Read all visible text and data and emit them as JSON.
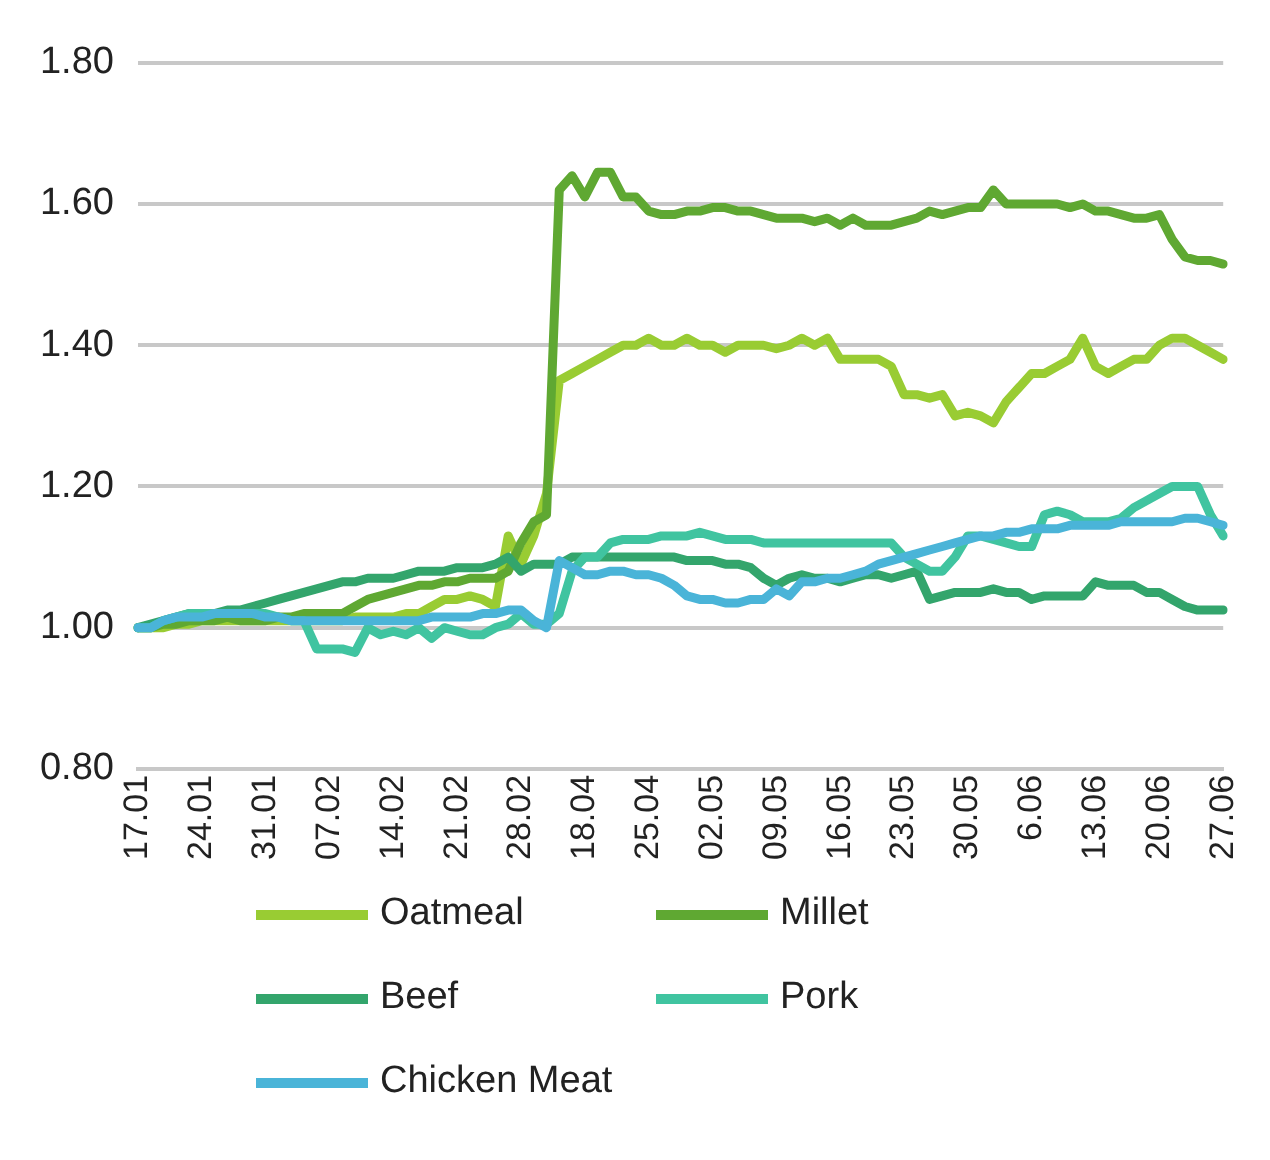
{
  "chart_data": {
    "type": "line",
    "categories": [
      "17.01",
      null,
      null,
      null,
      null,
      "24.01",
      null,
      null,
      null,
      null,
      "31.01",
      null,
      null,
      null,
      null,
      "07.02",
      null,
      null,
      null,
      null,
      "14.02",
      null,
      null,
      null,
      null,
      "21.02",
      null,
      null,
      null,
      null,
      "28.02",
      null,
      null,
      null,
      null,
      "18.04",
      null,
      null,
      null,
      null,
      "25.04",
      null,
      null,
      null,
      null,
      "02.05",
      null,
      null,
      null,
      null,
      "09.05",
      null,
      null,
      null,
      null,
      "16.05",
      null,
      null,
      null,
      null,
      "23.05",
      null,
      null,
      null,
      null,
      "30.05",
      null,
      null,
      null,
      null,
      "6.06",
      null,
      null,
      null,
      null,
      "13.06",
      null,
      null,
      null,
      null,
      "20.06",
      null,
      null,
      null,
      null,
      "27.06"
    ],
    "series": [
      {
        "name": "Oatmeal",
        "color": "#99cc33",
        "values": [
          1.0,
          1.0,
          1.0,
          1.005,
          1.005,
          1.01,
          1.01,
          1.01,
          1.01,
          1.01,
          1.01,
          1.01,
          1.01,
          1.01,
          1.01,
          1.01,
          1.01,
          1.015,
          1.015,
          1.015,
          1.015,
          1.02,
          1.02,
          1.03,
          1.04,
          1.04,
          1.045,
          1.04,
          1.03,
          1.13,
          1.09,
          1.13,
          1.19,
          1.35,
          1.36,
          1.37,
          1.38,
          1.39,
          1.4,
          1.4,
          1.41,
          1.4,
          1.4,
          1.41,
          1.4,
          1.4,
          1.39,
          1.4,
          1.4,
          1.4,
          1.395,
          1.4,
          1.41,
          1.4,
          1.41,
          1.38,
          1.38,
          1.38,
          1.38,
          1.37,
          1.33,
          1.33,
          1.325,
          1.33,
          1.3,
          1.305,
          1.3,
          1.29,
          1.32,
          1.34,
          1.36,
          1.36,
          1.37,
          1.38,
          1.41,
          1.37,
          1.36,
          1.37,
          1.38,
          1.38,
          1.4,
          1.41,
          1.41,
          1.4,
          1.39,
          1.38
        ]
      },
      {
        "name": "Millet",
        "color": "#5fa832",
        "values": [
          1.0,
          1.0,
          1.005,
          1.005,
          1.01,
          1.01,
          1.01,
          1.015,
          1.01,
          1.01,
          1.01,
          1.015,
          1.015,
          1.02,
          1.02,
          1.02,
          1.02,
          1.03,
          1.04,
          1.045,
          1.05,
          1.055,
          1.06,
          1.06,
          1.065,
          1.065,
          1.07,
          1.07,
          1.07,
          1.08,
          1.12,
          1.15,
          1.16,
          1.62,
          1.64,
          1.61,
          1.645,
          1.645,
          1.61,
          1.61,
          1.59,
          1.585,
          1.585,
          1.59,
          1.59,
          1.595,
          1.595,
          1.59,
          1.59,
          1.585,
          1.58,
          1.58,
          1.58,
          1.575,
          1.58,
          1.57,
          1.58,
          1.57,
          1.57,
          1.57,
          1.575,
          1.58,
          1.59,
          1.585,
          1.59,
          1.595,
          1.595,
          1.62,
          1.6,
          1.6,
          1.6,
          1.6,
          1.6,
          1.595,
          1.6,
          1.59,
          1.59,
          1.585,
          1.58,
          1.58,
          1.585,
          1.55,
          1.525,
          1.52,
          1.52,
          1.515
        ]
      },
      {
        "name": "Beef",
        "color": "#33a56c",
        "values": [
          1.0,
          1.005,
          1.01,
          1.015,
          1.02,
          1.02,
          1.02,
          1.025,
          1.025,
          1.03,
          1.035,
          1.04,
          1.045,
          1.05,
          1.055,
          1.06,
          1.065,
          1.065,
          1.07,
          1.07,
          1.07,
          1.075,
          1.08,
          1.08,
          1.08,
          1.085,
          1.085,
          1.085,
          1.09,
          1.1,
          1.08,
          1.09,
          1.09,
          1.09,
          1.1,
          1.1,
          1.1,
          1.1,
          1.1,
          1.1,
          1.1,
          1.1,
          1.1,
          1.095,
          1.095,
          1.095,
          1.09,
          1.09,
          1.085,
          1.07,
          1.06,
          1.07,
          1.075,
          1.07,
          1.07,
          1.065,
          1.07,
          1.075,
          1.075,
          1.07,
          1.075,
          1.08,
          1.04,
          1.045,
          1.05,
          1.05,
          1.05,
          1.055,
          1.05,
          1.05,
          1.04,
          1.045,
          1.045,
          1.045,
          1.045,
          1.065,
          1.06,
          1.06,
          1.06,
          1.05,
          1.05,
          1.04,
          1.03,
          1.025,
          1.025,
          1.025
        ]
      },
      {
        "name": "Pork",
        "color": "#40c4a0",
        "values": [
          1.0,
          1.0,
          1.01,
          1.015,
          1.02,
          1.02,
          1.02,
          1.02,
          1.02,
          1.02,
          1.02,
          1.015,
          1.01,
          1.01,
          0.97,
          0.97,
          0.97,
          0.965,
          1.0,
          0.99,
          0.995,
          0.99,
          1.0,
          0.985,
          1.0,
          0.995,
          0.99,
          0.99,
          1.0,
          1.005,
          1.02,
          1.005,
          1.005,
          1.02,
          1.08,
          1.1,
          1.1,
          1.12,
          1.125,
          1.125,
          1.125,
          1.13,
          1.13,
          1.13,
          1.135,
          1.13,
          1.125,
          1.125,
          1.125,
          1.12,
          1.12,
          1.12,
          1.12,
          1.12,
          1.12,
          1.12,
          1.12,
          1.12,
          1.12,
          1.12,
          1.1,
          1.09,
          1.08,
          1.08,
          1.1,
          1.13,
          1.13,
          1.125,
          1.12,
          1.115,
          1.115,
          1.16,
          1.165,
          1.16,
          1.15,
          1.15,
          1.15,
          1.155,
          1.17,
          1.18,
          1.19,
          1.2,
          1.2,
          1.2,
          1.16,
          1.13
        ]
      },
      {
        "name": "Chicken Meat",
        "color": "#4ab4d8",
        "values": [
          1.0,
          1.0,
          1.01,
          1.015,
          1.015,
          1.015,
          1.02,
          1.02,
          1.02,
          1.02,
          1.015,
          1.015,
          1.01,
          1.01,
          1.01,
          1.01,
          1.01,
          1.01,
          1.01,
          1.01,
          1.01,
          1.01,
          1.01,
          1.015,
          1.015,
          1.015,
          1.015,
          1.02,
          1.02,
          1.025,
          1.025,
          1.01,
          1.0,
          1.095,
          1.085,
          1.075,
          1.075,
          1.08,
          1.08,
          1.075,
          1.075,
          1.07,
          1.06,
          1.045,
          1.04,
          1.04,
          1.035,
          1.035,
          1.04,
          1.04,
          1.055,
          1.045,
          1.065,
          1.065,
          1.07,
          1.07,
          1.075,
          1.08,
          1.09,
          1.095,
          1.1,
          1.105,
          1.11,
          1.115,
          1.12,
          1.125,
          1.13,
          1.13,
          1.135,
          1.135,
          1.14,
          1.14,
          1.14,
          1.145,
          1.145,
          1.145,
          1.145,
          1.15,
          1.15,
          1.15,
          1.15,
          1.15,
          1.155,
          1.155,
          1.15,
          1.145
        ]
      }
    ],
    "ylim": [
      0.8,
      1.8
    ],
    "yticks": [
      {
        "value": 0.8,
        "label": "0.80"
      },
      {
        "value": 1.0,
        "label": "1.00"
      },
      {
        "value": 1.2,
        "label": "1.20"
      },
      {
        "value": 1.4,
        "label": "1.40"
      },
      {
        "value": 1.6,
        "label": "1.60"
      },
      {
        "value": 1.8,
        "label": "1.80"
      }
    ],
    "grid": "y",
    "legend": "bottom",
    "marker": "none",
    "line_style": "solid"
  }
}
